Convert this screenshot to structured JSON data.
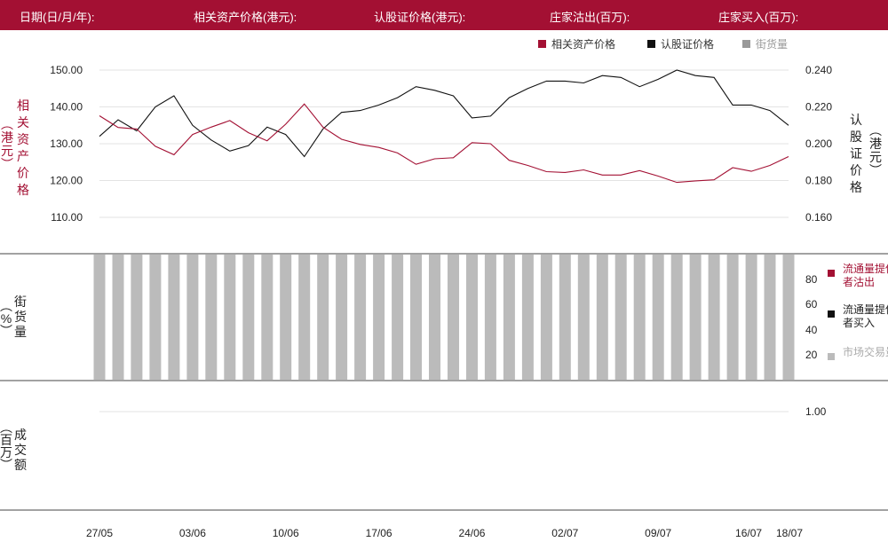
{
  "header": {
    "fields": [
      {
        "label": "日期(日/月/年):",
        "value": ""
      },
      {
        "label": "相关资产价格(港元):",
        "value": ""
      },
      {
        "label": "认股证价格(港元):",
        "value": ""
      },
      {
        "label": "庄家沽出(百万):",
        "value": ""
      },
      {
        "label": "庄家买入(百万):",
        "value": ""
      }
    ]
  },
  "colors": {
    "header_bg": "#a31033",
    "underlying": "#a31033",
    "warrant": "#111111",
    "market_volume": "#bbbbbb"
  },
  "chart_data": [
    {
      "type": "line",
      "legend": [
        "相关资产价格",
        "认股证价格",
        "街货量"
      ],
      "legend_position": "top-right",
      "ylabel_left": "相关资产价格（港元）",
      "ylabel_right": "认股证价格（港元）",
      "ylim_left": [
        105,
        155
      ],
      "ylim_right": [
        0.15,
        0.25
      ],
      "yticks_left": [
        "150.00",
        "140.00",
        "130.00",
        "120.00",
        "110.00"
      ],
      "yticks_right": [
        "0.240",
        "0.220",
        "0.200",
        "0.180",
        "0.160"
      ],
      "x": [
        "27/05",
        "28/05",
        "29/05",
        "30/05",
        "31/05",
        "03/06",
        "04/06",
        "05/06",
        "06/06",
        "07/06",
        "10/06",
        "11/06",
        "12/06",
        "13/06",
        "14/06",
        "17/06",
        "18/06",
        "19/06",
        "20/06",
        "21/06",
        "24/06",
        "25/06",
        "26/06",
        "27/06",
        "28/06",
        "02/07",
        "03/07",
        "04/07",
        "05/07",
        "08/07",
        "09/07",
        "10/07",
        "11/07",
        "12/07",
        "15/07",
        "16/07",
        "17/07",
        "18/07"
      ],
      "xticks": [
        "27/05",
        "03/06",
        "10/06",
        "17/06",
        "24/06",
        "02/07",
        "09/07",
        "16/07",
        "18/07"
      ],
      "series": [
        {
          "name": "相关资产价格",
          "axis": "left",
          "values": [
            137.6,
            134.4,
            134.0,
            129.3,
            127.0,
            132.5,
            134.5,
            136.3,
            133.0,
            130.8,
            135.3,
            140.8,
            134.5,
            131.2,
            129.8,
            129.0,
            127.5,
            124.4,
            125.9,
            126.2,
            130.3,
            130.0,
            125.5,
            124.1,
            122.4,
            122.2,
            122.9,
            121.5,
            121.5,
            122.7,
            121.2,
            119.5,
            119.9,
            120.2,
            123.5,
            122.5,
            124.1,
            126.5
          ]
        },
        {
          "name": "认股证价格",
          "axis": "right",
          "values": [
            0.204,
            0.213,
            0.207,
            0.22,
            0.226,
            0.21,
            0.202,
            0.196,
            0.199,
            0.209,
            0.205,
            0.193,
            0.208,
            0.217,
            0.218,
            0.221,
            0.225,
            0.231,
            0.229,
            0.226,
            0.214,
            0.215,
            0.225,
            0.23,
            0.234,
            0.234,
            0.233,
            0.237,
            0.236,
            0.231,
            0.235,
            0.24,
            0.237,
            0.236,
            0.221,
            0.221,
            0.218,
            0.21
          ]
        }
      ]
    },
    {
      "type": "bar",
      "ylabel": "街货量（%）",
      "ylim": [
        0,
        100
      ],
      "yticks": [
        "80",
        "60",
        "40",
        "20"
      ],
      "legend": [
        "流通量提供者沽出",
        "流通量提供者买入",
        "市场交易量"
      ],
      "legend_position": "right",
      "series": [
        {
          "name": "街货量",
          "values": [
            100,
            100,
            100,
            100,
            100,
            100,
            100,
            100,
            100,
            100,
            100,
            100,
            100,
            100,
            100,
            100,
            100,
            100,
            100,
            100,
            100,
            100,
            100,
            100,
            100,
            100,
            100,
            100,
            100,
            100,
            100,
            100,
            100,
            100,
            100,
            100,
            100,
            100
          ]
        }
      ]
    },
    {
      "type": "bar",
      "ylabel": "成交额（百万）",
      "yticks": [
        "1.00"
      ],
      "series": []
    }
  ]
}
